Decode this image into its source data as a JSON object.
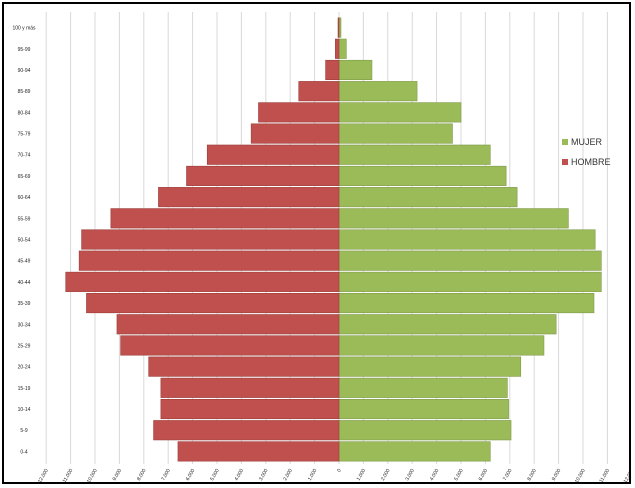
{
  "chart_data": {
    "type": "bar",
    "orientation": "horizontal",
    "layout": "population-pyramid",
    "categories": [
      "0-4",
      "5-9",
      "10-14",
      "15-19",
      "20-24",
      "25-29",
      "30-34",
      "35-39",
      "40-44",
      "45-49",
      "50-54",
      "55-59",
      "60-64",
      "65-69",
      "70-74",
      "75-79",
      "80-84",
      "85-89",
      "90-94",
      "95-99",
      "100 y más"
    ],
    "series": [
      {
        "name": "MUJER",
        "color": "#9bbb59",
        "values": [
          6200,
          7050,
          6950,
          6900,
          7450,
          8400,
          8900,
          10450,
          10750,
          10750,
          10500,
          9400,
          7300,
          6850,
          6200,
          4650,
          5000,
          3200,
          1350,
          300,
          80
        ]
      },
      {
        "name": "HOMBRE",
        "color": "#c0504d",
        "values": [
          6600,
          7600,
          7300,
          7300,
          7800,
          8950,
          9100,
          10350,
          11200,
          10650,
          10550,
          9350,
          7400,
          6250,
          5400,
          3600,
          3300,
          1650,
          550,
          150,
          40
        ]
      }
    ],
    "x_ticks": [
      "12.000",
      "11.000",
      "10.000",
      "9.000",
      "8.000",
      "7.000",
      "6.000",
      "5.000",
      "4.000",
      "3.000",
      "2.000",
      "1.000",
      "0",
      "1.000",
      "2.000",
      "3.000",
      "4.000",
      "5.000",
      "6.000",
      "7.000",
      "8.000",
      "9.000",
      "10.000",
      "11.000",
      "12.000"
    ],
    "x_range": [
      -12000,
      12000
    ],
    "grid": "vertical",
    "legend_position": "right"
  }
}
